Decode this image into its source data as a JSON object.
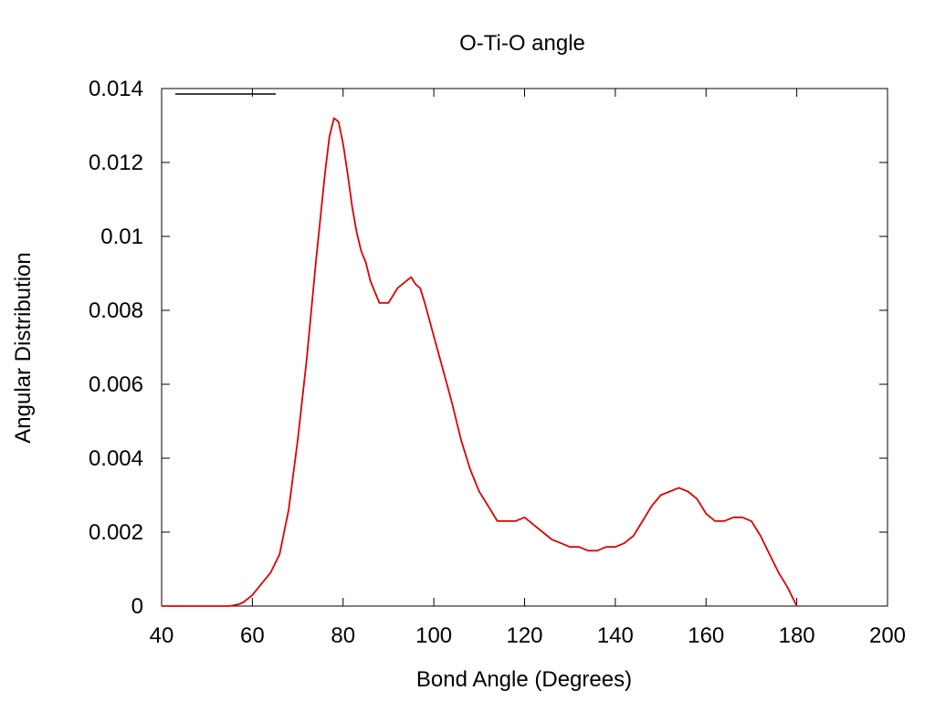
{
  "chart_data": {
    "type": "line",
    "title": "O-Ti-O angle",
    "xlabel": "Bond Angle (Degrees)",
    "ylabel": "Angular Distribution",
    "xlim": [
      40,
      200
    ],
    "ylim": [
      0,
      0.014
    ],
    "xticks": [
      "40",
      "60",
      "80",
      "100",
      "120",
      "140",
      "160",
      "180",
      "200"
    ],
    "yticks": [
      "0",
      "0.002",
      "0.004",
      "0.006",
      "0.008",
      "0.01",
      "0.012",
      "0.014"
    ],
    "grid": false,
    "legend": "top-left",
    "series": [
      {
        "name": "",
        "color": "#e00000",
        "x": [
          40,
          50,
          55,
          57,
          58,
          60,
          62,
          64,
          66,
          68,
          70,
          72,
          74,
          75,
          76,
          77,
          78,
          79,
          80,
          81,
          82,
          83,
          84,
          85,
          86,
          88,
          90,
          92,
          94,
          95,
          96,
          97,
          98,
          100,
          102,
          104,
          106,
          108,
          110,
          112,
          114,
          116,
          118,
          120,
          122,
          124,
          126,
          128,
          130,
          132,
          134,
          136,
          138,
          140,
          142,
          144,
          146,
          148,
          150,
          152,
          154,
          156,
          158,
          160,
          162,
          164,
          166,
          168,
          170,
          172,
          174,
          176,
          178,
          180
        ],
        "y": [
          0,
          0,
          0,
          5e-05,
          0.0001,
          0.0003,
          0.0006,
          0.0009,
          0.0014,
          0.0026,
          0.0045,
          0.0067,
          0.0093,
          0.0105,
          0.0117,
          0.0127,
          0.0132,
          0.0131,
          0.0125,
          0.0117,
          0.0108,
          0.0101,
          0.0096,
          0.0093,
          0.0088,
          0.0082,
          0.0082,
          0.0086,
          0.0088,
          0.0089,
          0.0087,
          0.0086,
          0.0082,
          0.0073,
          0.0064,
          0.0055,
          0.0045,
          0.0037,
          0.0031,
          0.0027,
          0.0023,
          0.0023,
          0.0023,
          0.0024,
          0.0022,
          0.002,
          0.0018,
          0.0017,
          0.0016,
          0.0016,
          0.0015,
          0.0015,
          0.0016,
          0.0016,
          0.0017,
          0.0019,
          0.0023,
          0.0027,
          0.003,
          0.0031,
          0.0032,
          0.0031,
          0.0029,
          0.0025,
          0.0023,
          0.0023,
          0.0024,
          0.0024,
          0.0023,
          0.0019,
          0.0014,
          0.0009,
          0.0005,
          0.0
        ]
      }
    ]
  }
}
